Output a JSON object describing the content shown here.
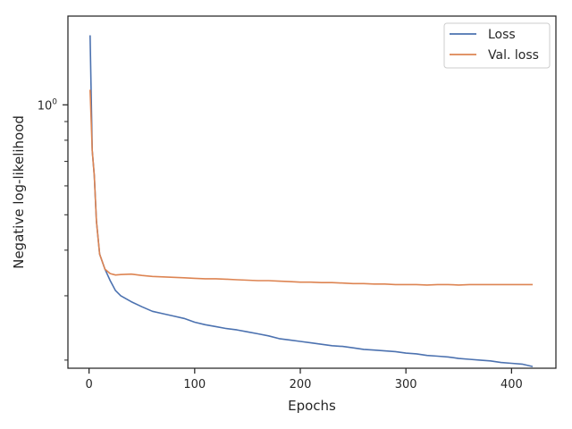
{
  "chart_data": {
    "type": "line",
    "xlabel": "Epochs",
    "ylabel": "Negative log-likelihood",
    "xlim": [
      -20,
      442
    ],
    "ylim": [
      0.19,
      1.75
    ],
    "y_scale": "log",
    "grid": false,
    "legend_position": "top-right",
    "x_ticks": [
      0,
      100,
      200,
      300,
      400
    ],
    "y_major_ticks": [
      {
        "value": 1.0,
        "base": "10",
        "exponent": "0"
      }
    ],
    "y_minor_ticks": [
      0.2,
      0.3,
      0.4,
      0.5,
      0.6,
      0.7,
      0.8,
      0.9
    ],
    "series": [
      {
        "name": "Loss",
        "color": "#4c72b0",
        "x": [
          1,
          3,
          5,
          7,
          10,
          15,
          20,
          25,
          30,
          40,
          50,
          60,
          70,
          80,
          90,
          100,
          110,
          120,
          130,
          140,
          150,
          160,
          170,
          180,
          190,
          200,
          210,
          220,
          230,
          240,
          250,
          260,
          270,
          280,
          290,
          300,
          310,
          320,
          330,
          340,
          350,
          360,
          370,
          380,
          390,
          400,
          410,
          420
        ],
        "y": [
          1.55,
          0.75,
          0.64,
          0.48,
          0.39,
          0.355,
          0.33,
          0.31,
          0.3,
          0.289,
          0.28,
          0.272,
          0.268,
          0.264,
          0.26,
          0.254,
          0.25,
          0.247,
          0.244,
          0.242,
          0.239,
          0.236,
          0.233,
          0.229,
          0.227,
          0.225,
          0.223,
          0.221,
          0.219,
          0.218,
          0.216,
          0.214,
          0.213,
          0.212,
          0.211,
          0.209,
          0.208,
          0.206,
          0.205,
          0.204,
          0.202,
          0.201,
          0.2,
          0.199,
          0.197,
          0.196,
          0.195,
          0.192
        ]
      },
      {
        "name": "Val. loss",
        "color": "#dd8452",
        "x": [
          1,
          3,
          5,
          7,
          10,
          15,
          20,
          25,
          30,
          40,
          50,
          60,
          70,
          80,
          90,
          100,
          110,
          120,
          130,
          140,
          150,
          160,
          170,
          180,
          190,
          200,
          210,
          220,
          230,
          240,
          250,
          260,
          270,
          280,
          290,
          300,
          310,
          320,
          330,
          340,
          350,
          360,
          370,
          380,
          390,
          400,
          410,
          420
        ],
        "y": [
          1.1,
          0.75,
          0.64,
          0.48,
          0.39,
          0.355,
          0.345,
          0.342,
          0.343,
          0.344,
          0.341,
          0.339,
          0.338,
          0.337,
          0.336,
          0.335,
          0.334,
          0.334,
          0.333,
          0.332,
          0.331,
          0.33,
          0.33,
          0.329,
          0.328,
          0.327,
          0.327,
          0.326,
          0.326,
          0.325,
          0.324,
          0.324,
          0.323,
          0.323,
          0.322,
          0.322,
          0.322,
          0.321,
          0.322,
          0.322,
          0.321,
          0.322,
          0.322,
          0.322,
          0.322,
          0.322,
          0.322,
          0.322
        ]
      }
    ]
  }
}
